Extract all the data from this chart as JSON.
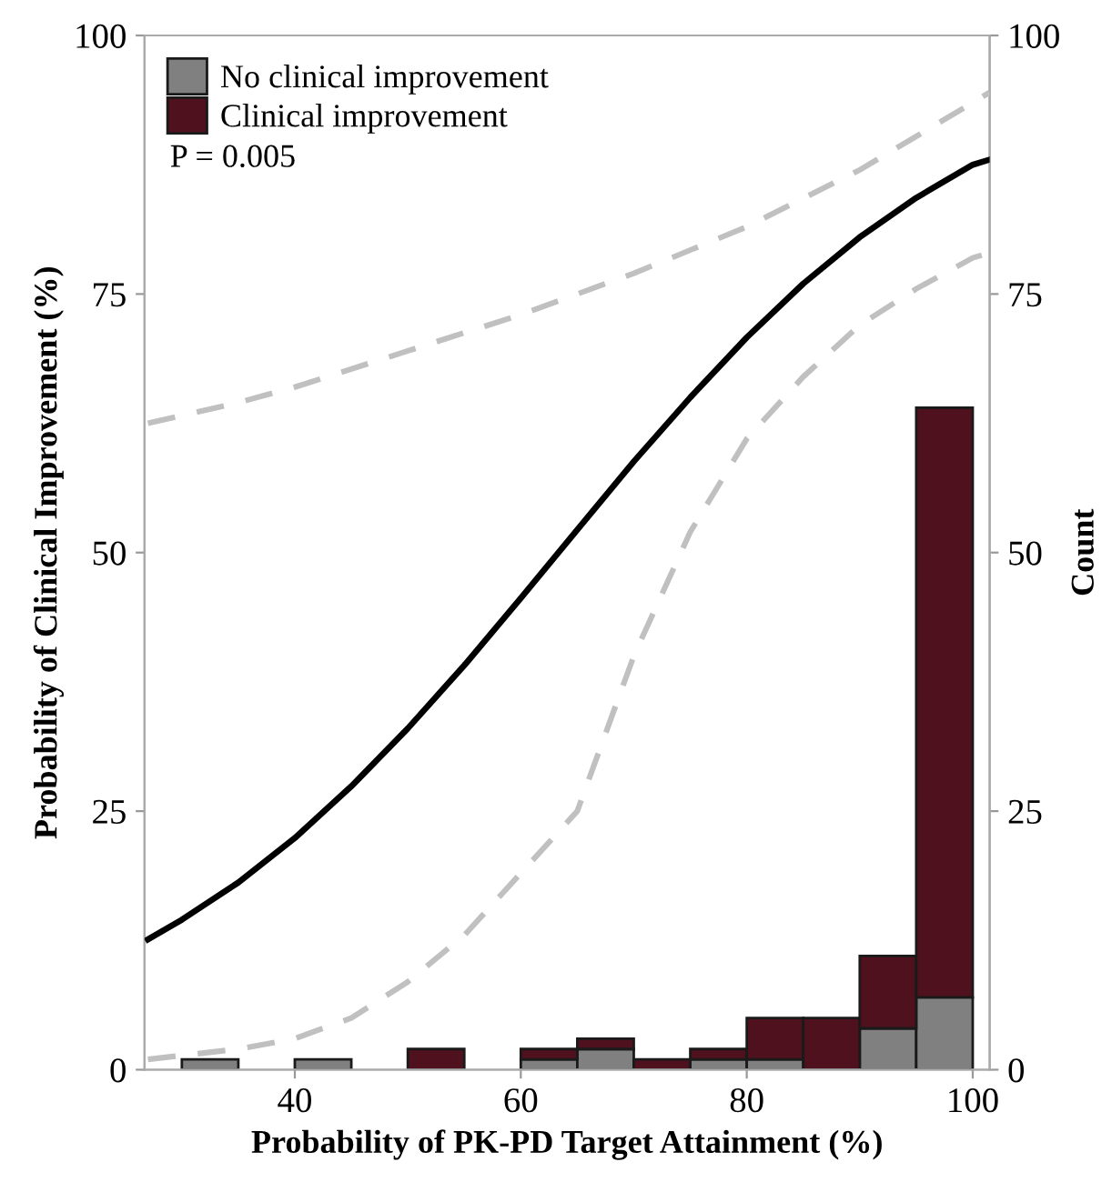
{
  "chart_data": {
    "type": "bar",
    "xlabel": "Probability of PK-PD Target Attainment (%)",
    "ylabel": "Probability of Clinical Improvement (%)",
    "y2label": "Count",
    "x": [
      32.5,
      37.5,
      42.5,
      47.5,
      52.5,
      57.5,
      62.5,
      67.5,
      72.5,
      77.5,
      82.5,
      87.5,
      92.5,
      97.5
    ],
    "stacked": true,
    "series": [
      {
        "name": "No clinical improvement",
        "color": "#808080",
        "axis": "y2",
        "values": [
          1,
          0,
          1,
          0,
          0,
          0,
          1,
          2,
          0,
          1,
          1,
          0,
          4,
          7
        ]
      },
      {
        "name": "Clinical improvement",
        "color": "#4f111e",
        "axis": "y2",
        "values": [
          0,
          0,
          0,
          0,
          2,
          0,
          1,
          1,
          1,
          1,
          4,
          5,
          7,
          57
        ]
      },
      {
        "type": "line",
        "color": "#000000",
        "line_style": "solid",
        "x": [
          27,
          30,
          35,
          40,
          45,
          50,
          55,
          60,
          65,
          70,
          75,
          80,
          85,
          90,
          95,
          100,
          101.5
        ],
        "values": [
          12.6,
          14.5,
          18.1,
          22.4,
          27.4,
          33.0,
          39.1,
          45.6,
          52.2,
          58.8,
          65.0,
          70.8,
          76.0,
          80.5,
          84.3,
          87.5,
          88.0
        ]
      },
      {
        "type": "line",
        "color": "#c0c0c0",
        "line_style": "dashed",
        "x": [
          27,
          35,
          40,
          50,
          60,
          70,
          80,
          90,
          100,
          101.5
        ],
        "values": [
          62.5,
          64.5,
          66,
          69.5,
          73,
          77,
          81.5,
          87,
          93.5,
          94.5
        ]
      },
      {
        "type": "line",
        "color": "#c0c0c0",
        "line_style": "dashed",
        "x": [
          27,
          35,
          40,
          45,
          50,
          55,
          60,
          65,
          70,
          75,
          80,
          85,
          90,
          95,
          100,
          101.5
        ],
        "values": [
          1,
          2,
          3,
          5,
          8.5,
          13,
          19,
          25,
          40,
          52,
          61,
          67,
          72,
          75.5,
          78.5,
          79
        ]
      }
    ],
    "annotations": [
      "P = 0.005"
    ],
    "xlim": [
      26.7,
      101.5
    ],
    "xticks": [
      40,
      60,
      80,
      100
    ],
    "ylim": [
      0,
      100
    ],
    "yticks": [
      0,
      25,
      50,
      75,
      100
    ],
    "y2lim": [
      0,
      100
    ],
    "y2ticks": [
      0,
      25,
      50,
      75,
      100
    ],
    "grid": false,
    "legend": "top left"
  }
}
